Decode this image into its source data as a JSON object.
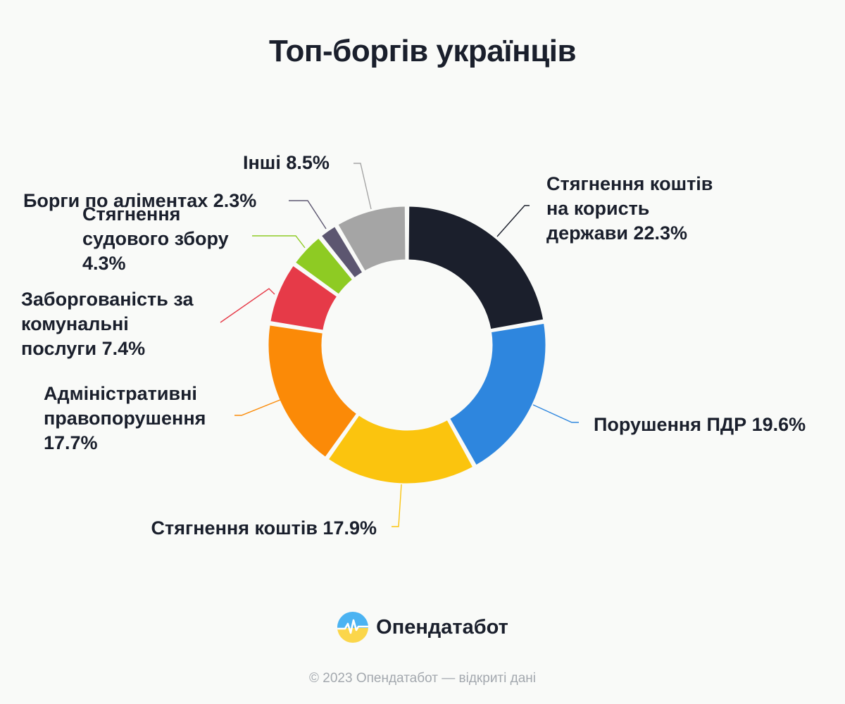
{
  "chart_data": {
    "type": "pie",
    "title": "Топ-боргів українців",
    "donut": true,
    "slices": [
      {
        "label_lines": [
          "Стягнення коштів",
          "на користь",
          "держави 22.3%"
        ],
        "value": 22.3,
        "color": "#1b1f2c"
      },
      {
        "label_lines": [
          "Порушення ПДР 19.6%"
        ],
        "value": 19.6,
        "color": "#2e86de"
      },
      {
        "label_lines": [
          "Стягнення коштів 17.9%"
        ],
        "value": 17.9,
        "color": "#fbc40e"
      },
      {
        "label_lines": [
          "Адміністративні",
          "правопорушення",
          "17.7%"
        ],
        "value": 17.7,
        "color": "#fb8a07"
      },
      {
        "label_lines": [
          "Заборгованість за",
          "комунальні",
          "послуги 7.4%"
        ],
        "value": 7.4,
        "color": "#e63a48"
      },
      {
        "label_lines": [
          "Стягнення",
          "судового збору",
          "4.3%"
        ],
        "value": 4.3,
        "color": "#8ecb23"
      },
      {
        "label_lines": [
          "Борги по аліментах 2.3%"
        ],
        "value": 2.3,
        "color": "#5c5670"
      },
      {
        "label_lines": [
          "Інші 8.5%"
        ],
        "value": 8.5,
        "color": "#a5a5a5"
      }
    ]
  },
  "branding": {
    "logo_icon": "opendatabot-logo-icon",
    "name": "Опендатабот"
  },
  "footer": {
    "copyright": "© 2023 Опендатабот — відкриті дані"
  }
}
